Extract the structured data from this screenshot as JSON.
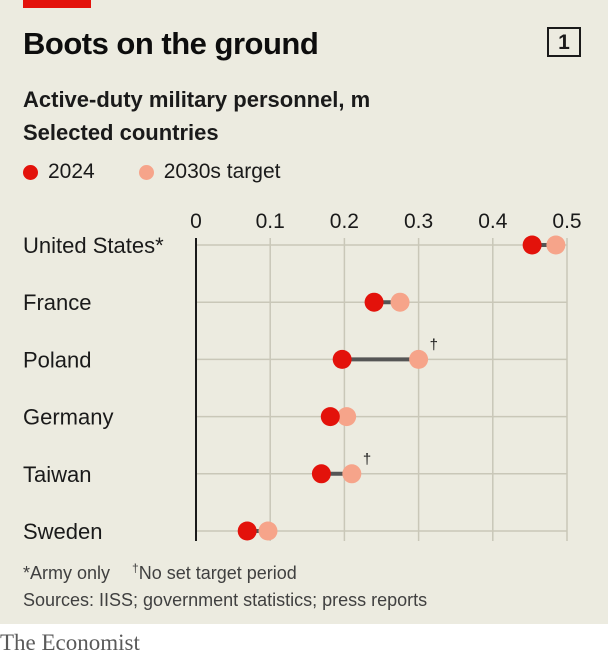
{
  "title": "Boots on the ground",
  "chart_number": "1",
  "subtitle_line1": "Active-duty military personnel, m",
  "subtitle_line2": "Selected countries",
  "footnote_star": "*Army only",
  "footnote_dagger_mark": "†",
  "footnote_dagger_text": "No set target period",
  "sources": "Sources: IISS; government statistics; press reports",
  "brand": "The Economist",
  "colors": {
    "series_2024": "#e3120b",
    "series_target": "#f6a48a",
    "connector": "#555555",
    "background": "#ecebe0"
  },
  "chart_data": {
    "type": "dumbbell",
    "title": "Boots on the ground",
    "subtitle": "Active-duty military personnel, m",
    "xlim": [
      0,
      0.5
    ],
    "x_ticks": [
      "0",
      "0.1",
      "0.2",
      "0.3",
      "0.4",
      "0.5"
    ],
    "x_tick_values": [
      0,
      0.1,
      0.2,
      0.3,
      0.4,
      0.5
    ],
    "legend_position": "top-left",
    "grid": true,
    "series": [
      {
        "name": "2024",
        "key": "v2024"
      },
      {
        "name": "2030s target",
        "key": "target"
      }
    ],
    "rows": [
      {
        "label": "United States*",
        "v2024": 0.453,
        "target": 0.485,
        "dagger": ""
      },
      {
        "label": "France",
        "v2024": 0.24,
        "target": 0.275,
        "dagger": ""
      },
      {
        "label": "Poland",
        "v2024": 0.197,
        "target": 0.3,
        "dagger": "†"
      },
      {
        "label": "Germany",
        "v2024": 0.181,
        "target": 0.203,
        "dagger": ""
      },
      {
        "label": "Taiwan",
        "v2024": 0.169,
        "target": 0.21,
        "dagger": "†"
      },
      {
        "label": "Sweden",
        "v2024": 0.069,
        "target": 0.097,
        "dagger": ""
      }
    ]
  }
}
